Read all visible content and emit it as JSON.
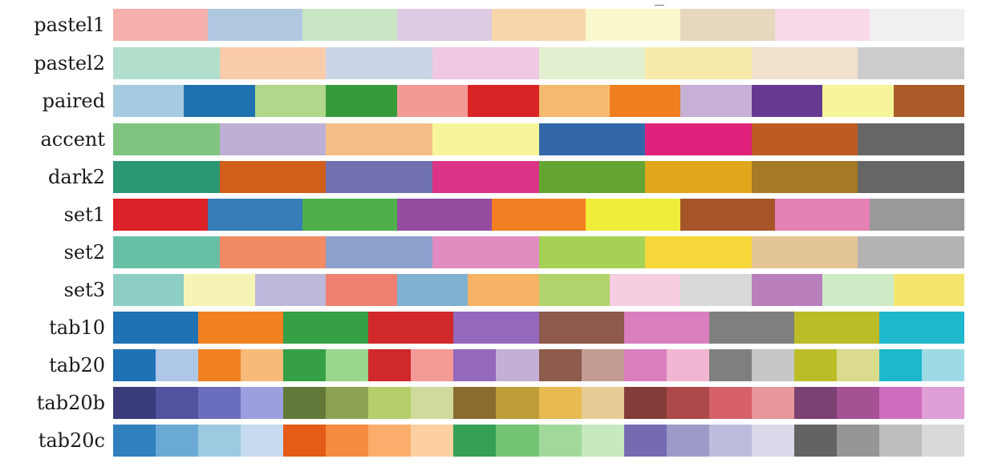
{
  "palettes": [
    {
      "name": "pastel1",
      "colors": [
        "#f5b0ad",
        "#b0c8df",
        "#c8e5c4",
        "#dccae2",
        "#f8d6a9",
        "#f9f8cc",
        "#e5d8bd",
        "#f8d9e8",
        "#f0f0f0"
      ]
    },
    {
      "name": "pastel2",
      "colors": [
        "#b2dfcc",
        "#f8ccaa",
        "#cbd4e6",
        "#efc8e2",
        "#e3f0d0",
        "#f8eaaa",
        "#f0e2cc",
        "#cccccc"
      ]
    },
    {
      "name": "paired",
      "colors": [
        "#a6cbe0",
        "#1f72b0",
        "#b0d78a",
        "#379b3b",
        "#f39a96",
        "#d92425",
        "#f6ba6e",
        "#ef7e1f",
        "#c7b0d5",
        "#673a92",
        "#f6f59a",
        "#ab5a2a"
      ]
    },
    {
      "name": "accent",
      "colors": [
        "#7fc47f",
        "#beb0d5",
        "#f6be89",
        "#f6f59a",
        "#3368a8",
        "#e0217c",
        "#be5b22",
        "#666666"
      ]
    },
    {
      "name": "dark2",
      "colors": [
        "#2c9775",
        "#d15f1b",
        "#7170b0",
        "#db3486",
        "#66a431",
        "#e0a71d",
        "#a57925",
        "#666666"
      ]
    },
    {
      "name": "set1",
      "colors": [
        "#dc2128",
        "#377db7",
        "#4db04b",
        "#944ba0",
        "#f27f22",
        "#f0ec3a",
        "#a65529",
        "#e681b6",
        "#999999"
      ]
    },
    {
      "name": "set2",
      "colors": [
        "#67c0a5",
        "#f18b64",
        "#8d9fcb",
        "#e18bc0",
        "#a5d154",
        "#f7d63a",
        "#e4c695",
        "#b3b3b3"
      ]
    },
    {
      "name": "set3",
      "colors": [
        "#8ccdc4",
        "#f6f4b4",
        "#bcb8d9",
        "#ef8072",
        "#7fb1d2",
        "#f6b365",
        "#b2d36b",
        "#f6cde1",
        "#d9d9d9",
        "#b97fbc",
        "#ccebc5",
        "#f5e46e"
      ]
    },
    {
      "name": "tab10",
      "colors": [
        "#1f72b4",
        "#f18020",
        "#35a045",
        "#d0282b",
        "#9468bb",
        "#8d5a4b",
        "#d97fbe",
        "#7f7f7f",
        "#bbbd26",
        "#1eb7cc"
      ]
    },
    {
      "name": "tab20",
      "colors": [
        "#1f72b4",
        "#aec7e8",
        "#f18020",
        "#f8ba7a",
        "#35a045",
        "#98d68e",
        "#d0282b",
        "#f49a97",
        "#9468bb",
        "#c4b0d5",
        "#8d5a4b",
        "#c49c94",
        "#d97fbe",
        "#f1b6d2",
        "#7f7f7f",
        "#c7c7c7",
        "#bbbd26",
        "#dadb8d",
        "#1eb7cc",
        "#9edae5"
      ]
    },
    {
      "name": "tab20b",
      "colors": [
        "#393b7a",
        "#5252a0",
        "#6b6ebd",
        "#9c9ede",
        "#637939",
        "#8ea253",
        "#b5cf6b",
        "#cedb9c",
        "#8b6d31",
        "#bd9e39",
        "#e7ba52",
        "#e7cb94",
        "#843c39",
        "#ad494a",
        "#d6616b",
        "#e7969c",
        "#7b4173",
        "#a55194",
        "#ce6dbd",
        "#de9ed6"
      ]
    },
    {
      "name": "tab20c",
      "colors": [
        "#3080bd",
        "#6ba9d5",
        "#9dcae1",
        "#c6dbef",
        "#e55c17",
        "#f58c3f",
        "#fbad6b",
        "#fdd0a2",
        "#35a155",
        "#74c476",
        "#a1d99b",
        "#c7e9c0",
        "#756bb1",
        "#9e9ac8",
        "#bcbddc",
        "#dadaeb",
        "#636363",
        "#969696",
        "#bdbdbd",
        "#d9d9d9"
      ]
    }
  ]
}
